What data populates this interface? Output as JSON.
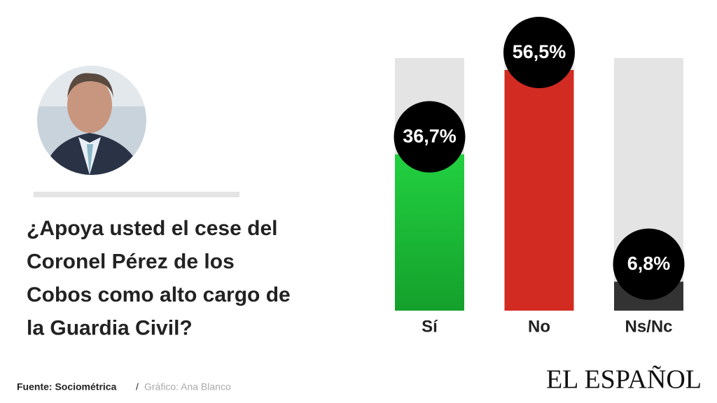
{
  "chart_data": {
    "type": "bar",
    "title_lines": [
      "¿Apoya usted el cese del",
      "Coronel Pérez de los",
      "Cobos como alto cargo de",
      "la Guardia Civil?"
    ],
    "categories": [
      "Sí",
      "No",
      "Ns/Nc"
    ],
    "values": [
      36.7,
      56.5,
      6.8
    ],
    "value_labels": [
      "36,7%",
      "56,5%",
      "6,8%"
    ],
    "colors": [
      "#1fc23a",
      "#d22b22",
      "#333333"
    ],
    "source": "Fuente: Sociométrica",
    "separator": "/",
    "credit": "Gráfico: Ana Blanco",
    "brand": "EL ESPAÑOL"
  }
}
